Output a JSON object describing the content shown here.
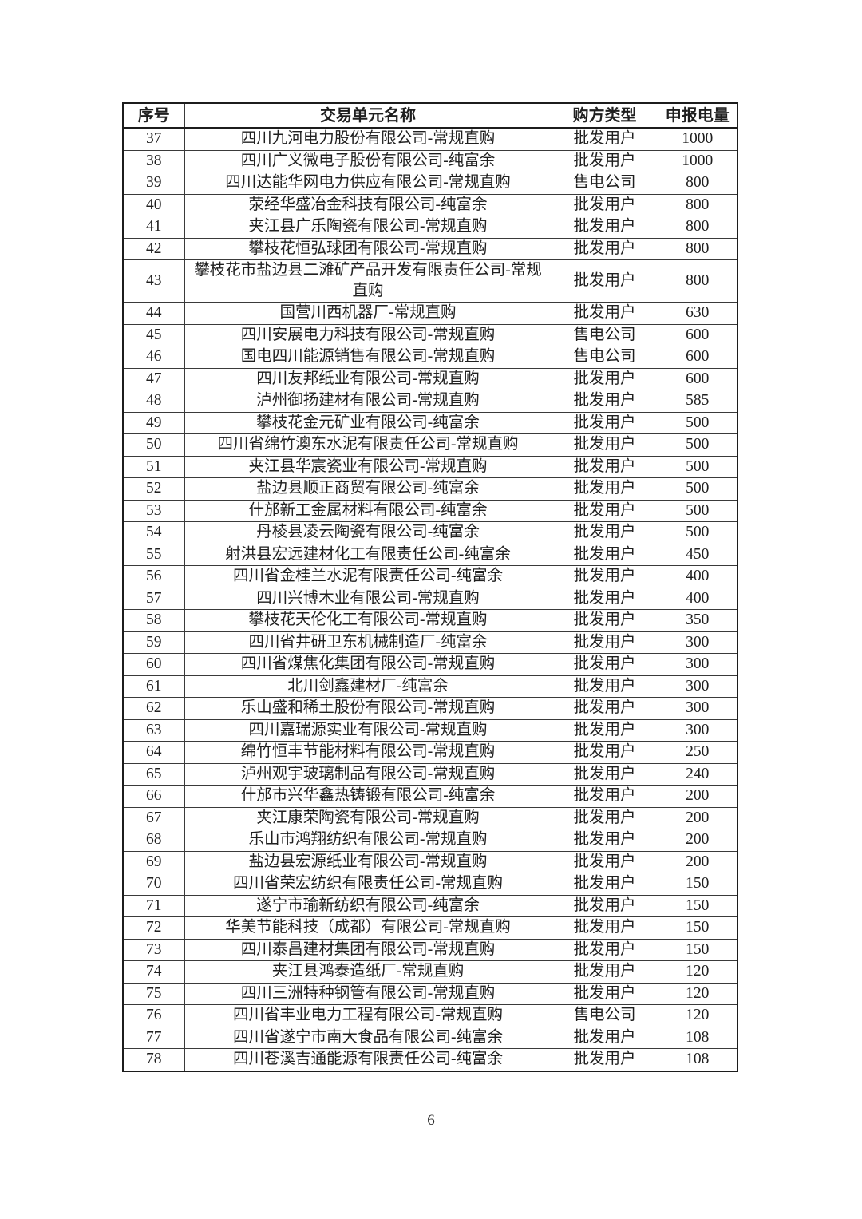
{
  "page": {
    "number": "6"
  },
  "table": {
    "headers": [
      "序号",
      "交易单元名称",
      "购方类型",
      "申报电量"
    ],
    "rows": [
      {
        "index": "37",
        "name": "四川九河电力股份有限公司-常规直购",
        "buyer_type": "批发用户",
        "volume": "1000"
      },
      {
        "index": "38",
        "name": "四川广义微电子股份有限公司-纯富余",
        "buyer_type": "批发用户",
        "volume": "1000"
      },
      {
        "index": "39",
        "name": "四川达能华网电力供应有限公司-常规直购",
        "buyer_type": "售电公司",
        "volume": "800"
      },
      {
        "index": "40",
        "name": "荥经华盛冶金科技有限公司-纯富余",
        "buyer_type": "批发用户",
        "volume": "800"
      },
      {
        "index": "41",
        "name": "夹江县广乐陶瓷有限公司-常规直购",
        "buyer_type": "批发用户",
        "volume": "800"
      },
      {
        "index": "42",
        "name": "攀枝花恒弘球团有限公司-常规直购",
        "buyer_type": "批发用户",
        "volume": "800"
      },
      {
        "index": "43",
        "name": "攀枝花市盐边县二滩矿产品开发有限责任公司-常规直购",
        "buyer_type": "批发用户",
        "volume": "800"
      },
      {
        "index": "44",
        "name": "国营川西机器厂-常规直购",
        "buyer_type": "批发用户",
        "volume": "630"
      },
      {
        "index": "45",
        "name": "四川安展电力科技有限公司-常规直购",
        "buyer_type": "售电公司",
        "volume": "600"
      },
      {
        "index": "46",
        "name": "国电四川能源销售有限公司-常规直购",
        "buyer_type": "售电公司",
        "volume": "600"
      },
      {
        "index": "47",
        "name": "四川友邦纸业有限公司-常规直购",
        "buyer_type": "批发用户",
        "volume": "600"
      },
      {
        "index": "48",
        "name": "泸州御扬建材有限公司-常规直购",
        "buyer_type": "批发用户",
        "volume": "585"
      },
      {
        "index": "49",
        "name": "攀枝花金元矿业有限公司-纯富余",
        "buyer_type": "批发用户",
        "volume": "500"
      },
      {
        "index": "50",
        "name": "四川省绵竹澳东水泥有限责任公司-常规直购",
        "buyer_type": "批发用户",
        "volume": "500"
      },
      {
        "index": "51",
        "name": "夹江县华宸瓷业有限公司-常规直购",
        "buyer_type": "批发用户",
        "volume": "500"
      },
      {
        "index": "52",
        "name": "盐边县顺正商贸有限公司-纯富余",
        "buyer_type": "批发用户",
        "volume": "500"
      },
      {
        "index": "53",
        "name": "什邡新工金属材料有限公司-纯富余",
        "buyer_type": "批发用户",
        "volume": "500"
      },
      {
        "index": "54",
        "name": "丹棱县凌云陶瓷有限公司-纯富余",
        "buyer_type": "批发用户",
        "volume": "500"
      },
      {
        "index": "55",
        "name": "射洪县宏远建材化工有限责任公司-纯富余",
        "buyer_type": "批发用户",
        "volume": "450"
      },
      {
        "index": "56",
        "name": "四川省金桂兰水泥有限责任公司-纯富余",
        "buyer_type": "批发用户",
        "volume": "400"
      },
      {
        "index": "57",
        "name": "四川兴博木业有限公司-常规直购",
        "buyer_type": "批发用户",
        "volume": "400"
      },
      {
        "index": "58",
        "name": "攀枝花天伦化工有限公司-常规直购",
        "buyer_type": "批发用户",
        "volume": "350"
      },
      {
        "index": "59",
        "name": "四川省井研卫东机械制造厂-纯富余",
        "buyer_type": "批发用户",
        "volume": "300"
      },
      {
        "index": "60",
        "name": "四川省煤焦化集团有限公司-常规直购",
        "buyer_type": "批发用户",
        "volume": "300"
      },
      {
        "index": "61",
        "name": "北川剑鑫建材厂-纯富余",
        "buyer_type": "批发用户",
        "volume": "300"
      },
      {
        "index": "62",
        "name": "乐山盛和稀土股份有限公司-常规直购",
        "buyer_type": "批发用户",
        "volume": "300"
      },
      {
        "index": "63",
        "name": "四川嘉瑞源实业有限公司-常规直购",
        "buyer_type": "批发用户",
        "volume": "300"
      },
      {
        "index": "64",
        "name": "绵竹恒丰节能材料有限公司-常规直购",
        "buyer_type": "批发用户",
        "volume": "250"
      },
      {
        "index": "65",
        "name": "泸州观宇玻璃制品有限公司-常规直购",
        "buyer_type": "批发用户",
        "volume": "240"
      },
      {
        "index": "66",
        "name": "什邡市兴华鑫热铸锻有限公司-纯富余",
        "buyer_type": "批发用户",
        "volume": "200"
      },
      {
        "index": "67",
        "name": "夹江康荣陶瓷有限公司-常规直购",
        "buyer_type": "批发用户",
        "volume": "200"
      },
      {
        "index": "68",
        "name": "乐山市鸿翔纺织有限公司-常规直购",
        "buyer_type": "批发用户",
        "volume": "200"
      },
      {
        "index": "69",
        "name": "盐边县宏源纸业有限公司-常规直购",
        "buyer_type": "批发用户",
        "volume": "200"
      },
      {
        "index": "70",
        "name": "四川省荣宏纺织有限责任公司-常规直购",
        "buyer_type": "批发用户",
        "volume": "150"
      },
      {
        "index": "71",
        "name": "遂宁市瑜新纺织有限公司-纯富余",
        "buyer_type": "批发用户",
        "volume": "150"
      },
      {
        "index": "72",
        "name": "华美节能科技（成都）有限公司-常规直购",
        "buyer_type": "批发用户",
        "volume": "150"
      },
      {
        "index": "73",
        "name": "四川泰昌建材集团有限公司-常规直购",
        "buyer_type": "批发用户",
        "volume": "150"
      },
      {
        "index": "74",
        "name": "夹江县鸿泰造纸厂-常规直购",
        "buyer_type": "批发用户",
        "volume": "120"
      },
      {
        "index": "75",
        "name": "四川三洲特种钢管有限公司-常规直购",
        "buyer_type": "批发用户",
        "volume": "120"
      },
      {
        "index": "76",
        "name": "四川省丰业电力工程有限公司-常规直购",
        "buyer_type": "售电公司",
        "volume": "120"
      },
      {
        "index": "77",
        "name": "四川省遂宁市南大食品有限公司-纯富余",
        "buyer_type": "批发用户",
        "volume": "108"
      },
      {
        "index": "78",
        "name": "四川苍溪吉通能源有限责任公司-纯富余",
        "buyer_type": "批发用户",
        "volume": "108"
      }
    ]
  }
}
